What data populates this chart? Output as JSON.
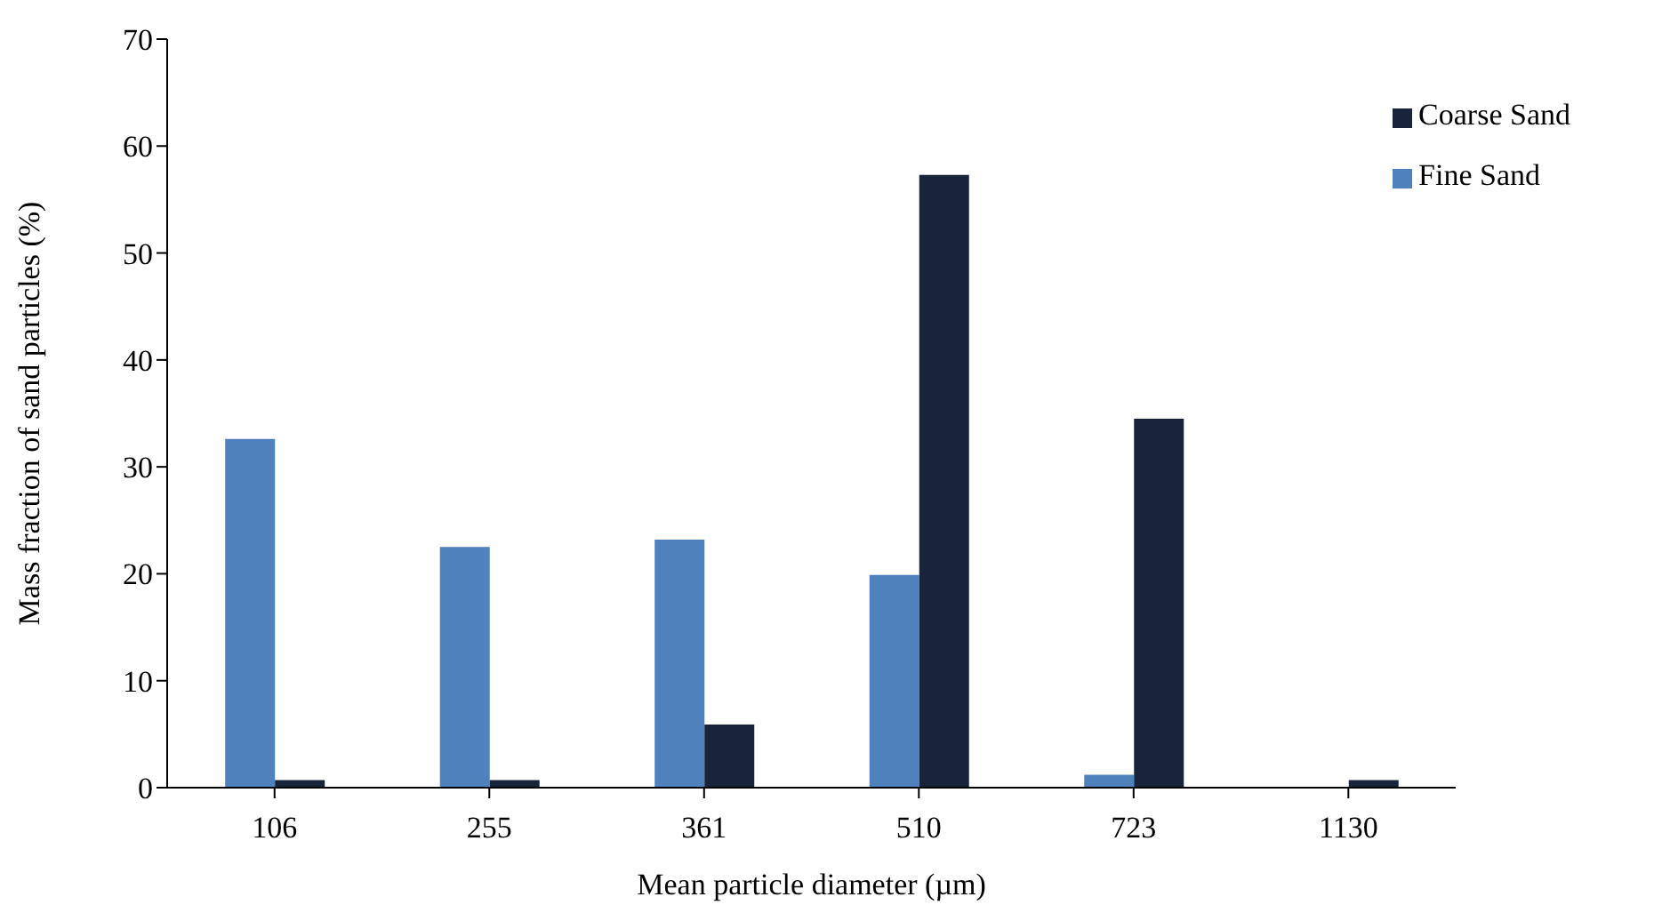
{
  "chart_data": {
    "type": "bar",
    "xlabel": "Mean particle diameter (µm)",
    "ylabel": "Mass fraction of sand particles (%)",
    "categories": [
      "106",
      "255",
      "361",
      "510",
      "723",
      "1130"
    ],
    "series": [
      {
        "name": "Fine Sand",
        "color": "#4f81bd",
        "values": [
          32.6,
          22.5,
          23.2,
          19.9,
          1.2,
          0
        ]
      },
      {
        "name": "Coarse Sand",
        "color": "#17243a",
        "values": [
          0.7,
          0.7,
          5.9,
          57.3,
          34.5,
          0.7
        ]
      }
    ],
    "ylim": [
      0,
      70
    ],
    "yticks": [
      0,
      10,
      20,
      30,
      40,
      50,
      60,
      70
    ],
    "grid": false,
    "legend": "top right"
  }
}
